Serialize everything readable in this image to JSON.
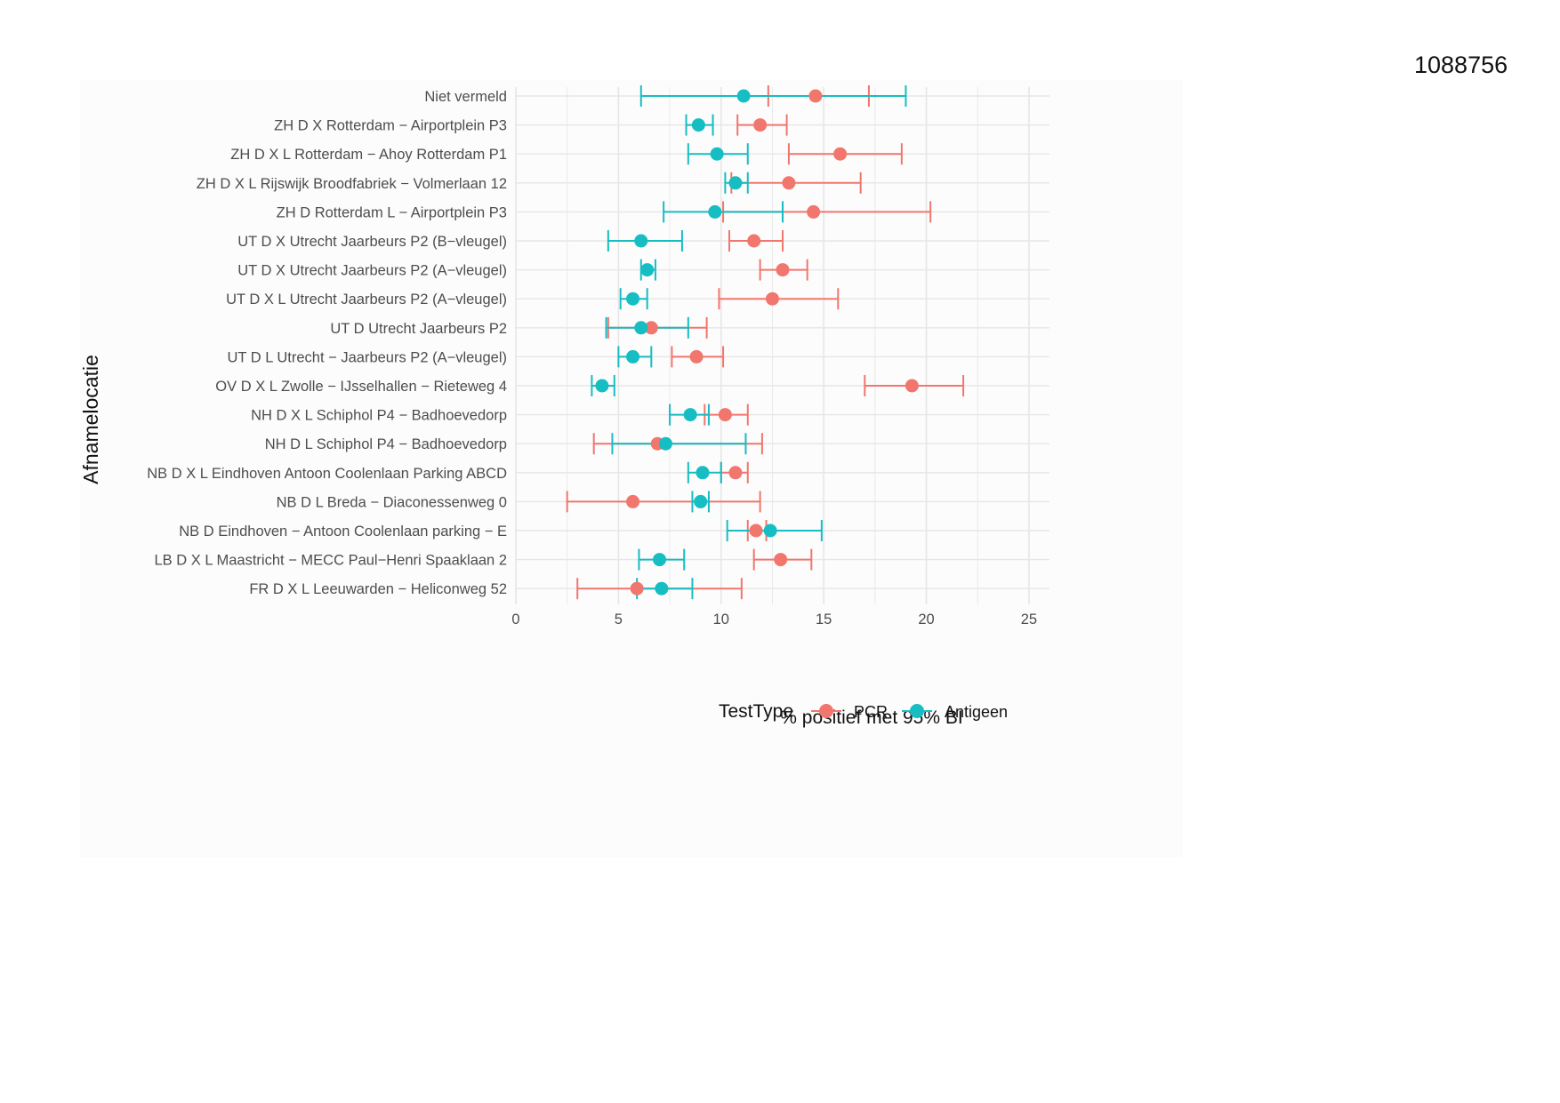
{
  "page": {
    "doc_id": "1088756"
  },
  "colors": {
    "PCR": "#F1766D",
    "Antigeen": "#16BDC3",
    "grid": "#e6e6e6",
    "text": "#4d4d4d"
  },
  "chart_data": {
    "type": "dot-errorbar",
    "orientation": "horizontal",
    "xlabel": "% positief met 95% BI",
    "ylabel": "Afnamelocatie",
    "xlim": [
      0,
      26
    ],
    "xticks": [
      0,
      5,
      10,
      15,
      20,
      25
    ],
    "grid": true,
    "legend": {
      "title": "TestType",
      "position": "bottom",
      "entries": [
        "PCR",
        "Antigeen"
      ]
    },
    "categories": [
      "Niet vermeld",
      "ZH D X Rotterdam − Airportplein P3",
      "ZH D X L Rotterdam − Ahoy Rotterdam P1",
      "ZH D X L Rijswijk Broodfabriek − Volmerlaan 12",
      "ZH D Rotterdam L − Airportplein P3",
      "UT D X Utrecht Jaarbeurs P2 (B−vleugel)",
      "UT D X Utrecht Jaarbeurs P2 (A−vleugel)",
      "UT D X L Utrecht Jaarbeurs P2 (A−vleugel)",
      "UT D Utrecht Jaarbeurs P2",
      "UT D L Utrecht − Jaarbeurs P2 (A−vleugel)",
      "OV D X L Zwolle − IJsselhallen − Rieteweg 4",
      "NH D X L Schiphol P4 − Badhoevedorp",
      "NH D L Schiphol P4 − Badhoevedorp",
      "NB D X L Eindhoven Antoon Coolenlaan Parking ABCD",
      "NB D L Breda − Diaconessenweg 0",
      "NB D Eindhoven − Antoon Coolenlaan parking − E",
      "LB D X L Maastricht − MECC Paul−Henri Spaaklaan 2",
      "FR D X L Leeuwarden − Heliconweg 52"
    ],
    "series": [
      {
        "name": "PCR",
        "values": [
          14.6,
          11.9,
          15.8,
          13.3,
          14.5,
          11.6,
          13.0,
          12.5,
          6.6,
          8.8,
          19.3,
          10.2,
          6.9,
          10.7,
          5.7,
          11.7,
          12.9,
          5.9
        ],
        "lower": [
          12.3,
          10.8,
          13.3,
          10.5,
          10.1,
          10.4,
          11.9,
          9.9,
          4.5,
          7.6,
          17.0,
          9.2,
          3.8,
          10.0,
          2.5,
          11.3,
          11.6,
          3.0
        ],
        "upper": [
          17.2,
          13.2,
          18.8,
          16.8,
          20.2,
          13.0,
          14.2,
          15.7,
          9.3,
          10.1,
          21.8,
          11.3,
          12.0,
          11.3,
          11.9,
          12.2,
          14.4,
          11.0
        ]
      },
      {
        "name": "Antigeen",
        "values": [
          11.1,
          8.9,
          9.8,
          10.7,
          9.7,
          6.1,
          6.4,
          5.7,
          6.1,
          5.7,
          4.2,
          8.5,
          7.3,
          9.1,
          9.0,
          12.4,
          7.0,
          7.1
        ],
        "lower": [
          6.1,
          8.3,
          8.4,
          10.2,
          7.2,
          4.5,
          6.1,
          5.1,
          4.4,
          5.0,
          3.7,
          7.5,
          4.7,
          8.4,
          8.6,
          10.3,
          6.0,
          5.9
        ],
        "upper": [
          19.0,
          9.6,
          11.3,
          11.3,
          13.0,
          8.1,
          6.8,
          6.4,
          8.4,
          6.6,
          4.8,
          9.4,
          11.2,
          10.0,
          9.4,
          14.9,
          8.2,
          8.6
        ]
      }
    ]
  }
}
